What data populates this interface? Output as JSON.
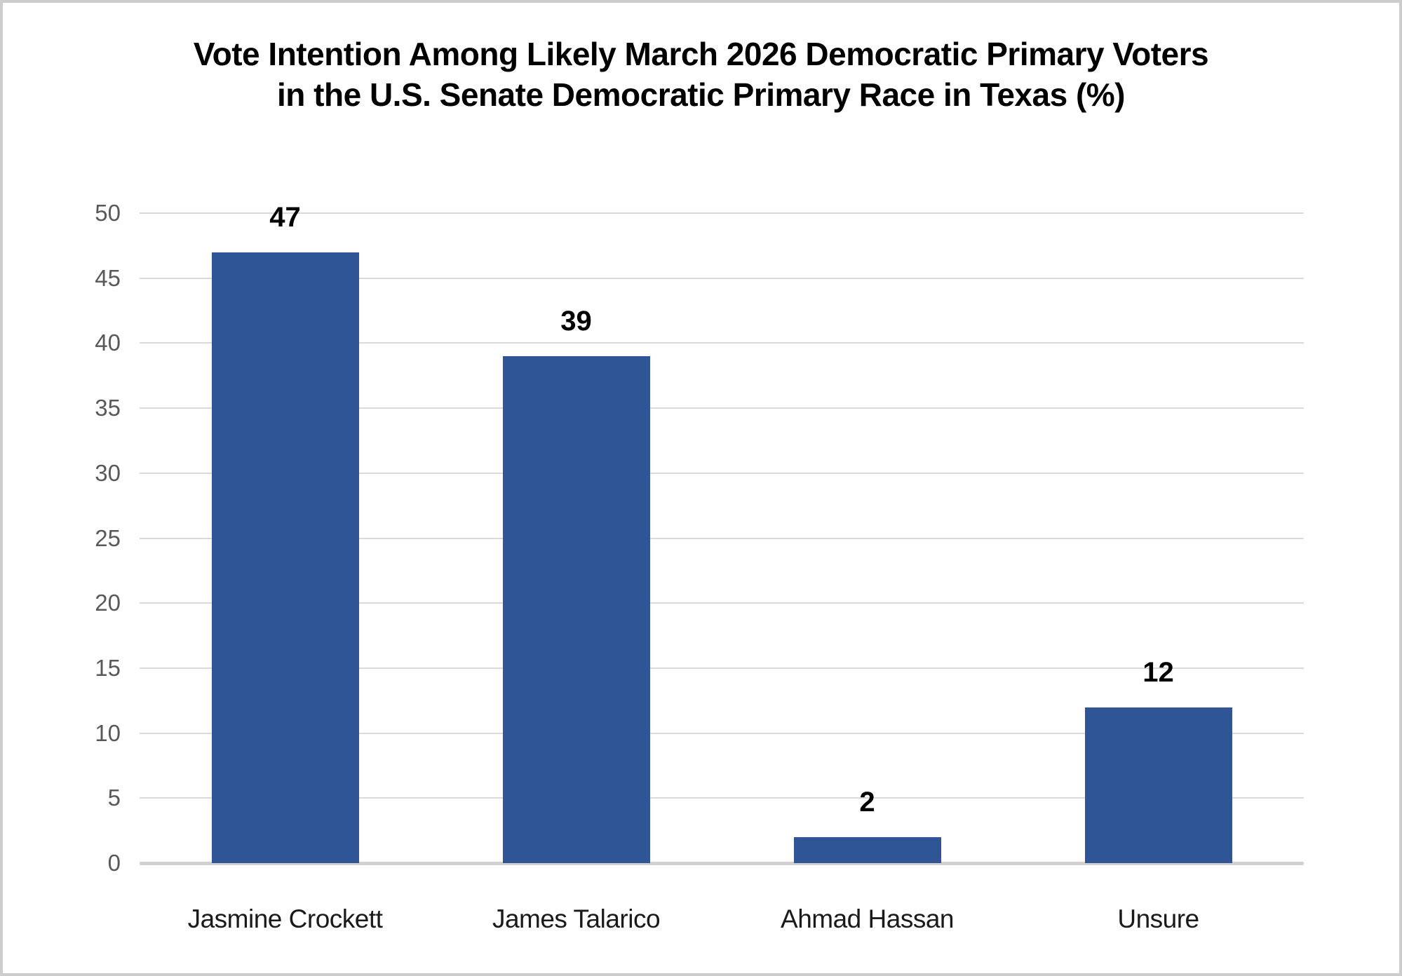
{
  "title": {
    "line1": "Vote Intention Among Likely March 2026 Democratic Primary Voters",
    "line2": "in the U.S. Senate Democratic Primary Race in Texas (%)"
  },
  "chart_data": {
    "type": "bar",
    "title": "Vote Intention Among Likely March 2026 Democratic Primary Voters in the U.S. Senate Democratic Primary Race in Texas (%)",
    "categories": [
      "Jasmine Crockett",
      "James Talarico",
      "Ahmad Hassan",
      "Unsure"
    ],
    "values": [
      47,
      39,
      2,
      12
    ],
    "data_labels": [
      "47",
      "39",
      "2",
      "12"
    ],
    "xlabel": "",
    "ylabel": "",
    "ylim": [
      0,
      50
    ],
    "ytick_step": 5,
    "yticks": [
      "0",
      "5",
      "10",
      "15",
      "20",
      "25",
      "30",
      "35",
      "40",
      "45",
      "50"
    ],
    "grid": "horizontal",
    "legend": "none"
  },
  "colors": {
    "bar_fill": "#2F5597",
    "gridline": "#D9D9D9",
    "axis_line": "#D2D0D0",
    "ytick_label": "#595959",
    "category_label": "#1A1A1A",
    "title_text": "#000000",
    "frame_border": "#CDCDCD",
    "background": "#FFFFFF"
  }
}
